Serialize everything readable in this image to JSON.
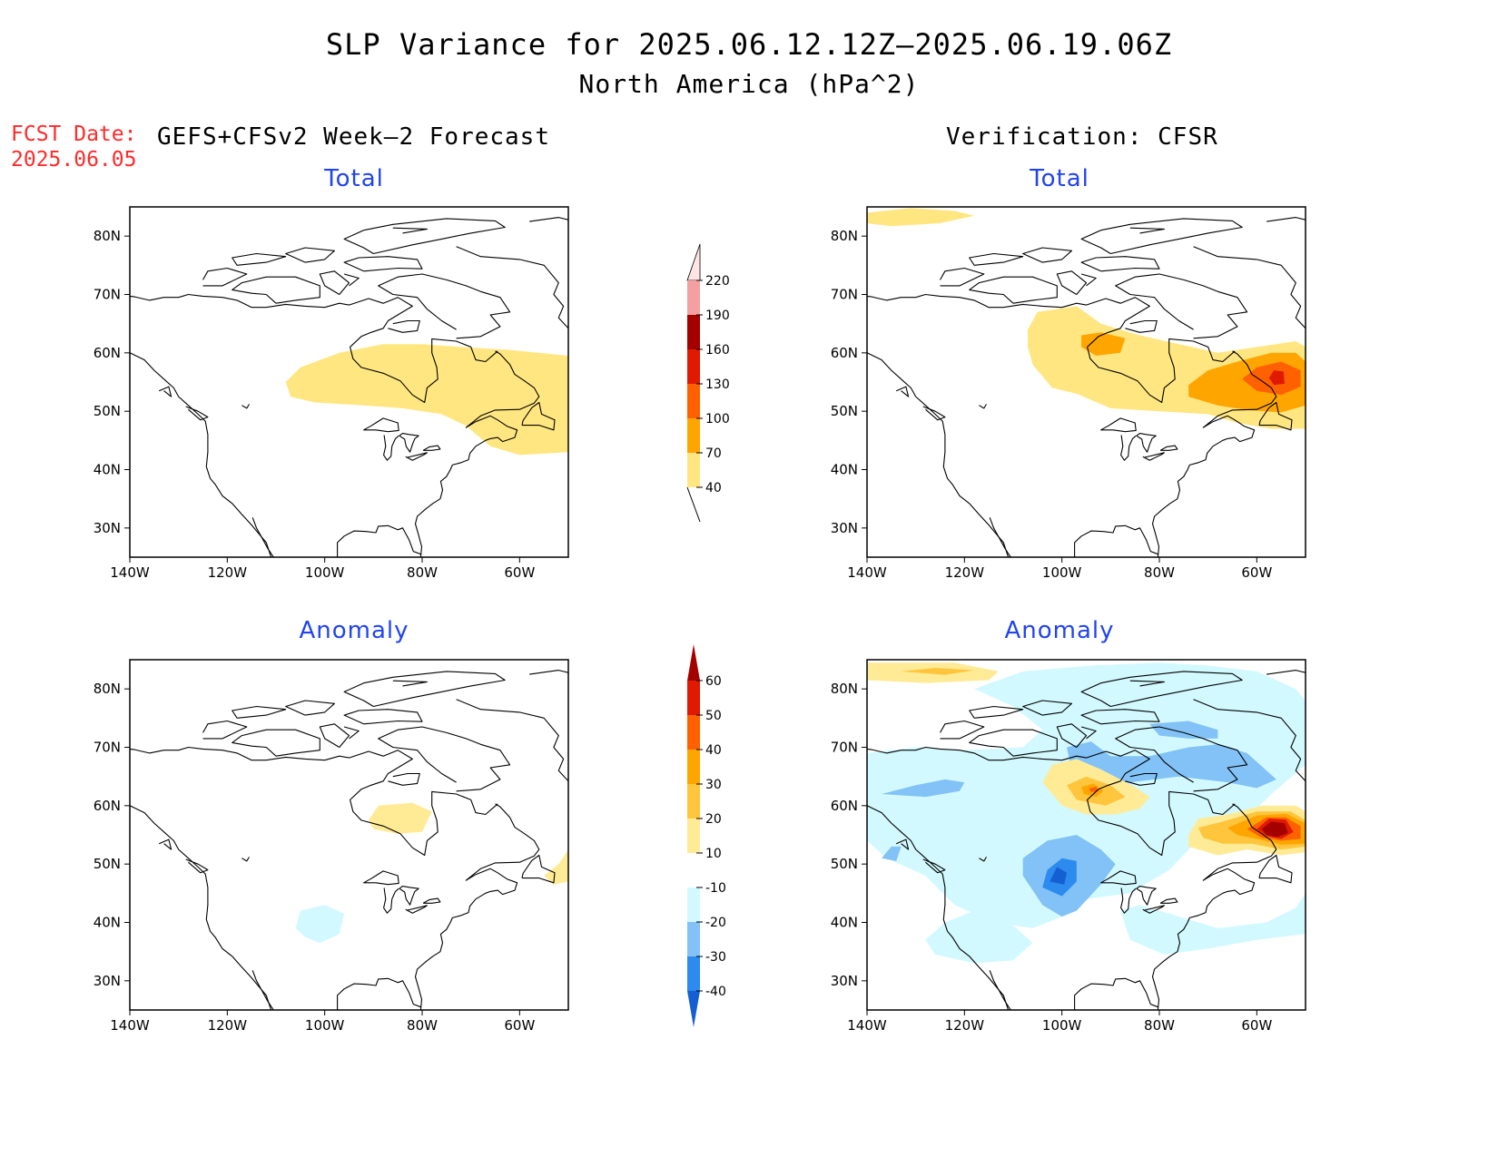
{
  "title": {
    "line1": "SLP Variance for 2025.06.12.12Z–2025.06.19.06Z",
    "line2": "North America (hPa^2)"
  },
  "fcst_date": {
    "label": "FCST Date:",
    "value": "2025.06.05"
  },
  "headers": {
    "left": "GEFS+CFSv2 Week–2 Forecast",
    "right": "Verification: CFSR"
  },
  "panels": {
    "fc_total": {
      "title": "Total"
    },
    "vf_total": {
      "title": "Total"
    },
    "fc_anom": {
      "title": "Anomaly"
    },
    "vf_anom": {
      "title": "Anomaly"
    }
  },
  "map_axes": {
    "lon_range": [
      -140,
      -50
    ],
    "lat_range": [
      25,
      85
    ],
    "lon_ticks": [
      "140W",
      "120W",
      "100W",
      "80W",
      "60W"
    ],
    "lat_ticks": [
      "30N",
      "40N",
      "50N",
      "60N",
      "70N",
      "80N"
    ]
  },
  "colorbars": {
    "total": {
      "levels": [
        "40",
        "70",
        "100",
        "130",
        "160",
        "190",
        "220"
      ],
      "colors": [
        "#ffe680",
        "#ffa500",
        "#ff6100",
        "#e01a00",
        "#a50000",
        "#f4a0a0",
        "#ffe4e4"
      ]
    },
    "anomaly": {
      "levels": [
        "-40",
        "-30",
        "-20",
        "-10",
        "10",
        "20",
        "30",
        "40",
        "50",
        "60"
      ],
      "colors": [
        "#1460d2",
        "#2d8aef",
        "#82c2f6",
        "#d2f9ff",
        "#ffffff",
        "#ffeb96",
        "#ffc53c",
        "#ffa500",
        "#ff6100",
        "#e01a00",
        "#a50000"
      ]
    }
  },
  "colors": {
    "fcst_date": "#ff2a2a",
    "panel_title": "#2244ee"
  }
}
